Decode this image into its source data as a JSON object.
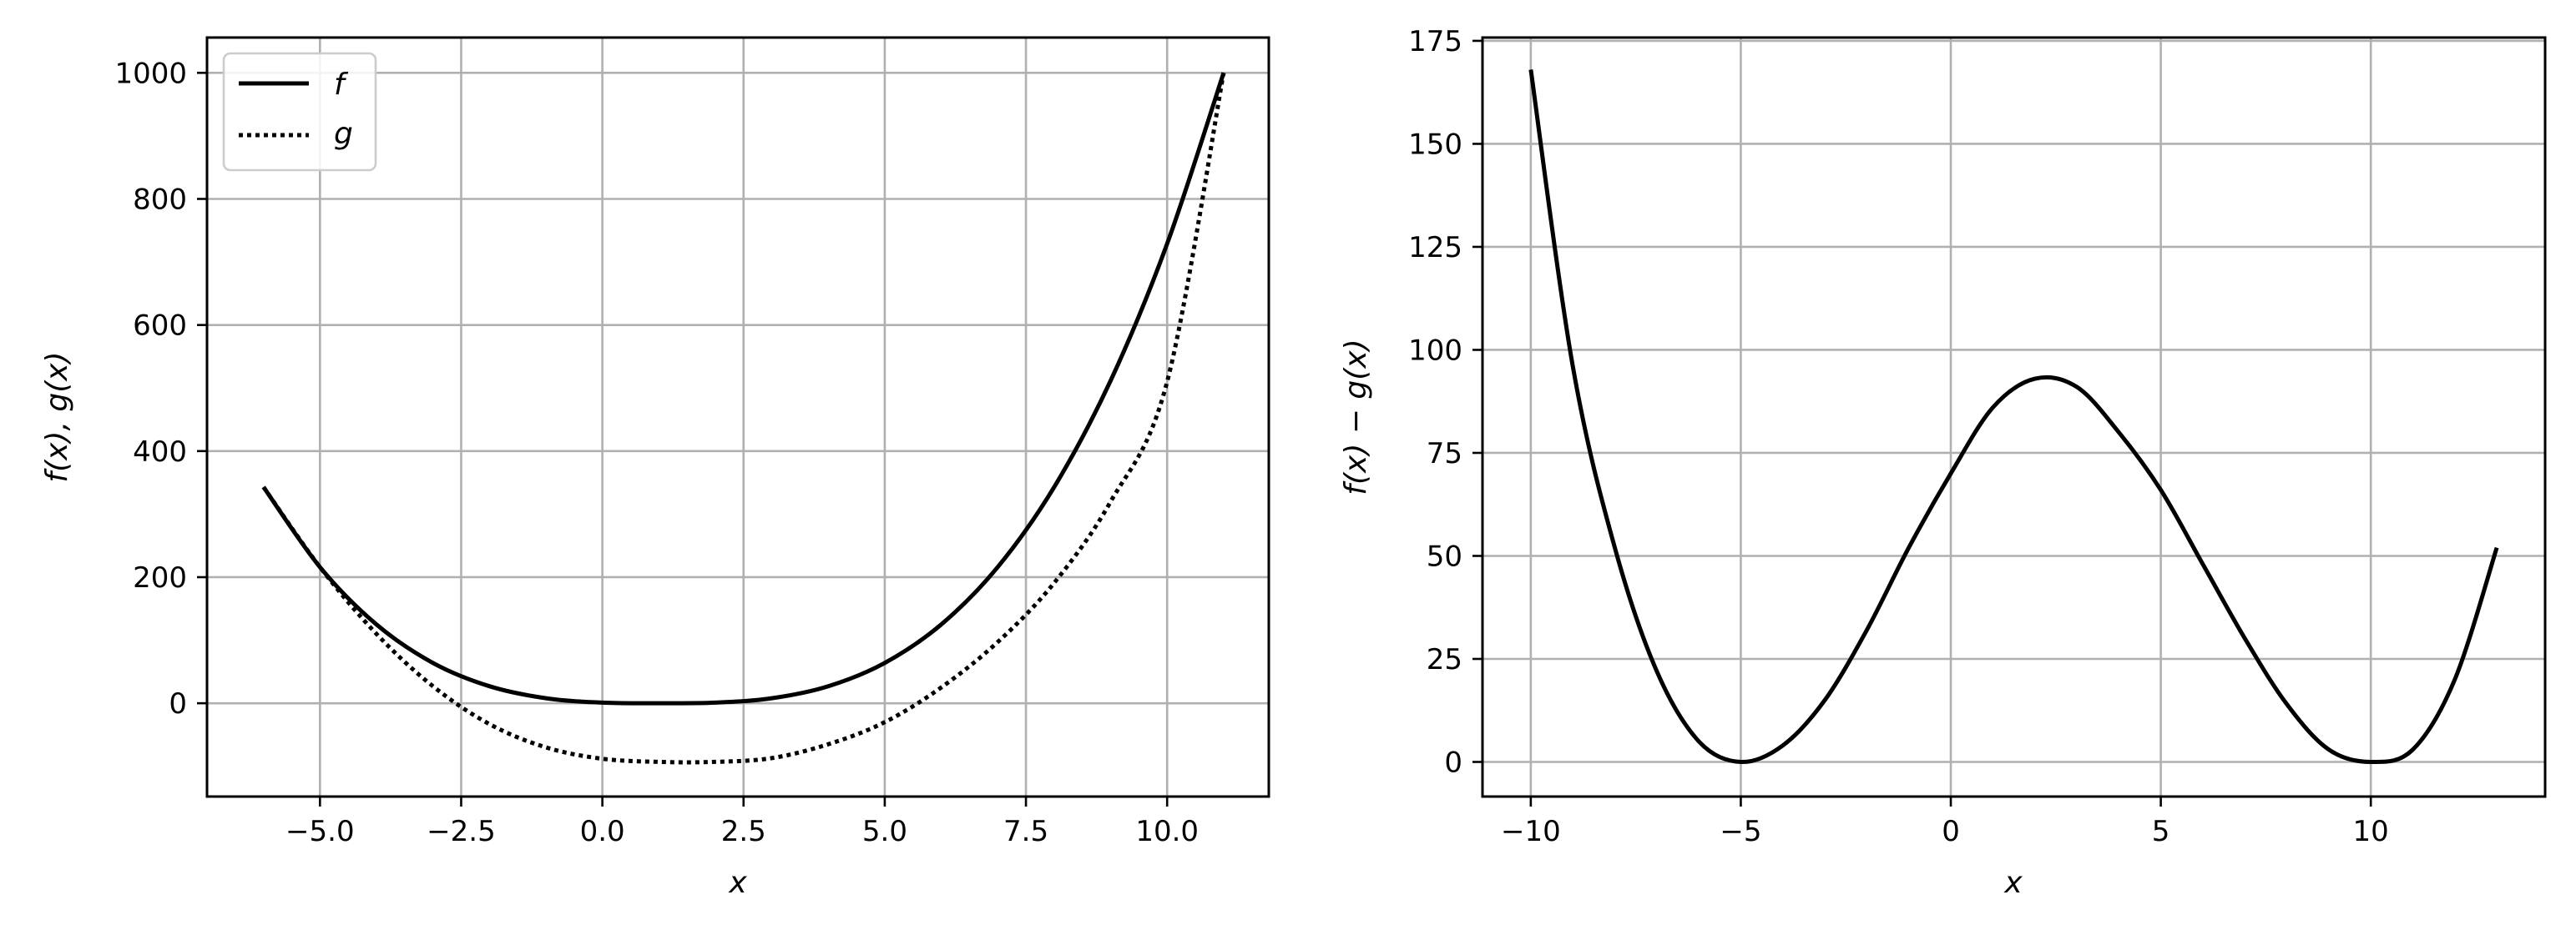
{
  "chart_data": [
    {
      "type": "line",
      "title": "",
      "xlabel": "x",
      "ylabel": "f(x), g(x)",
      "xlim": [
        -7,
        11.8
      ],
      "ylim": [
        -148,
        1056
      ],
      "grid": true,
      "legend": {
        "placement": "top-left",
        "entries": [
          {
            "label": "f",
            "style": "solid"
          },
          {
            "label": "g",
            "style": "dotted"
          }
        ]
      },
      "x_ticks": [
        -5.0,
        -2.5,
        0.0,
        2.5,
        5.0,
        7.5,
        10.0
      ],
      "x_tick_labels": [
        "−5.0",
        "−2.5",
        "0.0",
        "2.5",
        "5.0",
        "7.5",
        "10.0"
      ],
      "y_ticks": [
        0,
        200,
        400,
        600,
        800,
        1000
      ],
      "y_tick_labels": [
        "0",
        "200",
        "400",
        "600",
        "800",
        "1000"
      ],
      "series": [
        {
          "name": "f",
          "style": "solid",
          "x": [
            -6,
            -5,
            -4,
            -3,
            -2,
            -1,
            0,
            1,
            2,
            3,
            4,
            5,
            6,
            7,
            8,
            9,
            10,
            11
          ],
          "y": [
            343,
            216,
            125,
            64,
            27,
            8,
            1,
            0,
            1,
            8,
            27,
            64,
            125,
            216,
            343,
            512,
            729,
            1000
          ]
        },
        {
          "name": "g",
          "style": "dotted",
          "x": [
            -6,
            -5,
            -4,
            -3,
            -2,
            -1,
            0,
            1,
            2,
            3,
            4,
            5,
            6,
            7,
            8,
            9,
            10,
            11
          ],
          "y": [
            343,
            216,
            110,
            27,
            -33,
            -70,
            -88,
            -93,
            -93,
            -87,
            -65,
            -30,
            25,
            97,
            191,
            320,
            510,
            1000
          ]
        }
      ]
    },
    {
      "type": "line",
      "title": "",
      "xlabel": "x",
      "ylabel": "f(x) − g(x)",
      "xlim": [
        -11.15,
        14.15
      ],
      "ylim": [
        -8.4,
        175.8
      ],
      "grid": true,
      "x_ticks": [
        -10,
        -5,
        0,
        5,
        10
      ],
      "x_tick_labels": [
        "−10",
        "−5",
        "0",
        "5",
        "10"
      ],
      "y_ticks": [
        0,
        25,
        50,
        75,
        100,
        125,
        150,
        175
      ],
      "y_tick_labels": [
        "0",
        "25",
        "50",
        "75",
        "100",
        "125",
        "150",
        "175"
      ],
      "series": [
        {
          "name": "f − g",
          "style": "solid",
          "x": [
            -10,
            -9,
            -8,
            -7,
            -6,
            -5,
            -4,
            -3,
            -2,
            -1,
            0,
            1,
            2,
            3,
            4,
            5,
            6,
            7,
            8,
            9,
            10,
            11,
            12,
            13
          ],
          "y": [
            168,
            96,
            52,
            22,
            5,
            0,
            4,
            15,
            32,
            52,
            70,
            86,
            93,
            91,
            80,
            66,
            48,
            30,
            14,
            3,
            0,
            3,
            20,
            52
          ]
        }
      ]
    }
  ]
}
